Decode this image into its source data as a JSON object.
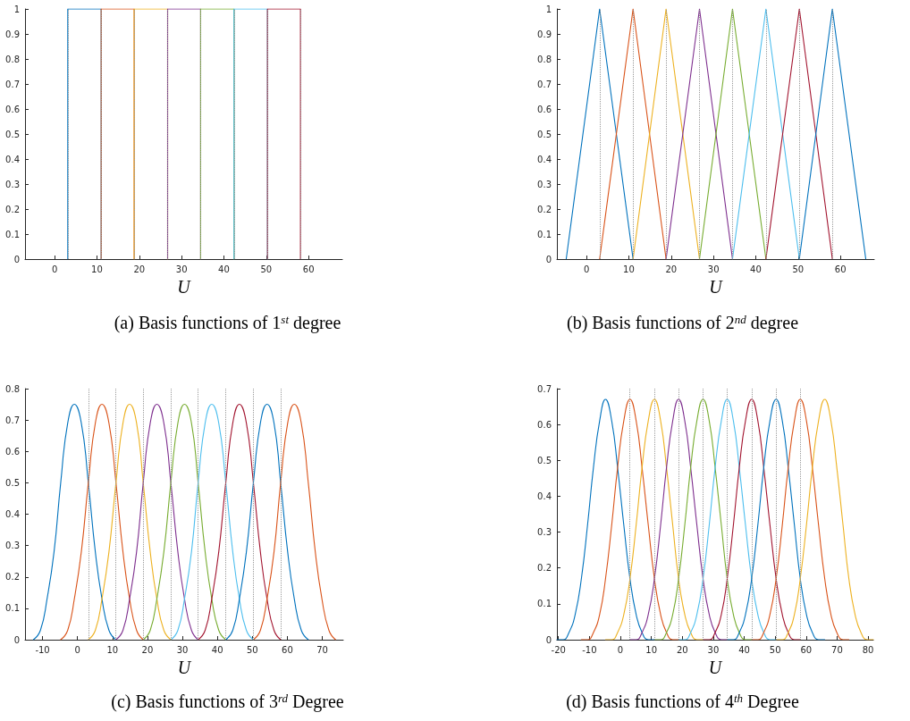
{
  "chart_data": [
    {
      "type": "step",
      "title": "(a) Basis functions of 1$^{st}$ degree",
      "xlabel": "U",
      "marker": "none",
      "xlim": [
        -7,
        68
      ],
      "xticks": [
        0,
        10,
        20,
        30,
        40,
        50,
        60
      ],
      "ylim": [
        0,
        1
      ],
      "yticks": [
        0,
        0.1,
        0.2,
        0.3,
        0.4,
        0.5,
        0.6,
        0.7,
        0.8,
        0.9,
        1
      ],
      "ref_lines": [
        {
          "axis": "x",
          "value": 3.1,
          "color": "#999999",
          "line_style": "dotted"
        },
        {
          "axis": "x",
          "value": 11.0,
          "color": "#999999",
          "line_style": "dotted"
        },
        {
          "axis": "x",
          "value": 18.8,
          "color": "#999999",
          "line_style": "dotted"
        },
        {
          "axis": "x",
          "value": 26.7,
          "color": "#999999",
          "line_style": "dotted"
        },
        {
          "axis": "x",
          "value": 34.5,
          "color": "#999999",
          "line_style": "dotted"
        },
        {
          "axis": "x",
          "value": 42.4,
          "color": "#999999",
          "line_style": "dotted"
        },
        {
          "axis": "x",
          "value": 50.3,
          "color": "#999999",
          "line_style": "dotted"
        },
        {
          "axis": "x",
          "value": 58.1,
          "color": "#999999",
          "line_style": "dotted"
        }
      ],
      "series": [
        {
          "color": "#0072bd",
          "x": [
            3.1,
            3.1,
            11.0
          ],
          "values": [
            0,
            1,
            0
          ]
        },
        {
          "color": "#d95319",
          "x": [
            11.0,
            11.0,
            18.8
          ],
          "values": [
            0,
            1,
            0
          ]
        },
        {
          "color": "#edb120",
          "x": [
            18.8,
            18.8,
            26.7
          ],
          "values": [
            0,
            1,
            0
          ]
        },
        {
          "color": "#7e2f8e",
          "x": [
            26.7,
            26.7,
            34.5
          ],
          "values": [
            0,
            1,
            0
          ]
        },
        {
          "color": "#77ac30",
          "x": [
            34.5,
            34.5,
            42.4
          ],
          "values": [
            0,
            1,
            0
          ]
        },
        {
          "color": "#4dbeee",
          "x": [
            42.4,
            42.4,
            50.3
          ],
          "values": [
            0,
            1,
            0
          ]
        },
        {
          "color": "#a2142f",
          "x": [
            50.3,
            50.3,
            58.1
          ],
          "values": [
            0,
            1,
            0
          ]
        }
      ]
    },
    {
      "type": "line",
      "title": "(b) Basis functions of 2$^{nd}$ degree",
      "xlabel": "U",
      "marker": "none",
      "xlim": [
        -7,
        68
      ],
      "xticks": [
        0,
        10,
        20,
        30,
        40,
        50,
        60
      ],
      "ylim": [
        0,
        1
      ],
      "yticks": [
        0,
        0.1,
        0.2,
        0.3,
        0.4,
        0.5,
        0.6,
        0.7,
        0.8,
        0.9,
        1
      ],
      "ref_lines": [
        {
          "axis": "x",
          "value": 3.1,
          "color": "#999999",
          "line_style": "dotted"
        },
        {
          "axis": "x",
          "value": 11.0,
          "color": "#999999",
          "line_style": "dotted"
        },
        {
          "axis": "x",
          "value": 18.8,
          "color": "#999999",
          "line_style": "dotted"
        },
        {
          "axis": "x",
          "value": 26.7,
          "color": "#999999",
          "line_style": "dotted"
        },
        {
          "axis": "x",
          "value": 34.5,
          "color": "#999999",
          "line_style": "dotted"
        },
        {
          "axis": "x",
          "value": 42.4,
          "color": "#999999",
          "line_style": "dotted"
        },
        {
          "axis": "x",
          "value": 50.3,
          "color": "#999999",
          "line_style": "dotted"
        },
        {
          "axis": "x",
          "value": 58.1,
          "color": "#999999",
          "line_style": "dotted"
        }
      ],
      "series": [
        {
          "color": "#0072bd",
          "x": [
            -4.8,
            3.1,
            11.0
          ],
          "values": [
            0,
            1,
            0
          ]
        },
        {
          "color": "#d95319",
          "x": [
            3.1,
            11.0,
            18.8
          ],
          "values": [
            0,
            1,
            0
          ]
        },
        {
          "color": "#edb120",
          "x": [
            11.0,
            18.8,
            26.7
          ],
          "values": [
            0,
            1,
            0
          ]
        },
        {
          "color": "#7e2f8e",
          "x": [
            18.8,
            26.7,
            34.5
          ],
          "values": [
            0,
            1,
            0
          ]
        },
        {
          "color": "#77ac30",
          "x": [
            26.7,
            34.5,
            42.4
          ],
          "values": [
            0,
            1,
            0
          ]
        },
        {
          "color": "#4dbeee",
          "x": [
            34.5,
            42.4,
            50.3
          ],
          "values": [
            0,
            1,
            0
          ]
        },
        {
          "color": "#a2142f",
          "x": [
            42.4,
            50.3,
            58.1
          ],
          "values": [
            0,
            1,
            0
          ]
        },
        {
          "color": "#0072bd",
          "x": [
            50.3,
            58.1,
            66.0
          ],
          "values": [
            0,
            1,
            0
          ]
        }
      ]
    },
    {
      "type": "line",
      "title": "(c) Basis functions of 3$^{rd}$ Degree",
      "xlabel": "U",
      "marker": "none",
      "xlim": [
        -15,
        76
      ],
      "xticks": [
        -10,
        0,
        10,
        20,
        30,
        40,
        50,
        60,
        70
      ],
      "ylim": [
        0,
        0.8
      ],
      "yticks": [
        0,
        0.1,
        0.2,
        0.3,
        0.4,
        0.5,
        0.6,
        0.7,
        0.8
      ],
      "x": [
        -12.6,
        -10.6,
        -8.7,
        -6.7,
        -4.8,
        -2.8,
        -0.9,
        1.1,
        3.1,
        5.1,
        7.0,
        9.0,
        11.0,
        13.0,
        14.9,
        16.9,
        18.8,
        20.8,
        22.7,
        24.7,
        26.7,
        28.7,
        30.6,
        32.6,
        34.5,
        36.5,
        38.4,
        40.4,
        42.4,
        44.4,
        46.3,
        48.3,
        50.3,
        52.3,
        54.2,
        56.2,
        58.1,
        60.1,
        62.0,
        64.0,
        66.0,
        68.0,
        69.9,
        71.9,
        73.8
      ],
      "ref_lines": [
        {
          "axis": "x",
          "value": 3.1,
          "color": "#999999",
          "line_style": "dotted"
        },
        {
          "axis": "x",
          "value": 11.0,
          "color": "#999999",
          "line_style": "dotted"
        },
        {
          "axis": "x",
          "value": 18.8,
          "color": "#999999",
          "line_style": "dotted"
        },
        {
          "axis": "x",
          "value": 26.7,
          "color": "#999999",
          "line_style": "dotted"
        },
        {
          "axis": "x",
          "value": 34.5,
          "color": "#999999",
          "line_style": "dotted"
        },
        {
          "axis": "x",
          "value": 42.4,
          "color": "#999999",
          "line_style": "dotted"
        },
        {
          "axis": "x",
          "value": 50.3,
          "color": "#999999",
          "line_style": "dotted"
        },
        {
          "axis": "x",
          "value": 58.1,
          "color": "#999999",
          "line_style": "dotted"
        }
      ],
      "series": [
        {
          "color": "#0072bd",
          "values": [
            0,
            0.03,
            0.13,
            0.28,
            0.5,
            0.69,
            0.75,
            0.69,
            0.5,
            0.28,
            0.13,
            0.03,
            0,
            null,
            null,
            null,
            null,
            null,
            null,
            null,
            null,
            null,
            null,
            null,
            null,
            null,
            null,
            null,
            null,
            null,
            null,
            null,
            null,
            null,
            null,
            null,
            null,
            null,
            null,
            null,
            null,
            null,
            null,
            null,
            null
          ]
        },
        {
          "color": "#d95319",
          "values": [
            null,
            null,
            null,
            null,
            0,
            0.03,
            0.13,
            0.28,
            0.5,
            0.69,
            0.75,
            0.69,
            0.5,
            0.28,
            0.13,
            0.03,
            0,
            null,
            null,
            null,
            null,
            null,
            null,
            null,
            null,
            null,
            null,
            null,
            null,
            null,
            null,
            null,
            null,
            null,
            null,
            null,
            null,
            null,
            null,
            null,
            null,
            null,
            null,
            null,
            null
          ]
        },
        {
          "color": "#edb120",
          "values": [
            null,
            null,
            null,
            null,
            null,
            null,
            null,
            null,
            0,
            0.03,
            0.13,
            0.28,
            0.5,
            0.69,
            0.75,
            0.69,
            0.5,
            0.28,
            0.13,
            0.03,
            0,
            null,
            null,
            null,
            null,
            null,
            null,
            null,
            null,
            null,
            null,
            null,
            null,
            null,
            null,
            null,
            null,
            null,
            null,
            null,
            null,
            null,
            null,
            null,
            null
          ]
        },
        {
          "color": "#7e2f8e",
          "values": [
            null,
            null,
            null,
            null,
            null,
            null,
            null,
            null,
            null,
            null,
            null,
            null,
            0,
            0.03,
            0.13,
            0.28,
            0.5,
            0.69,
            0.75,
            0.69,
            0.5,
            0.28,
            0.13,
            0.03,
            0,
            null,
            null,
            null,
            null,
            null,
            null,
            null,
            null,
            null,
            null,
            null,
            null,
            null,
            null,
            null,
            null,
            null,
            null,
            null,
            null
          ]
        },
        {
          "color": "#77ac30",
          "values": [
            null,
            null,
            null,
            null,
            null,
            null,
            null,
            null,
            null,
            null,
            null,
            null,
            null,
            null,
            null,
            null,
            0,
            0.03,
            0.13,
            0.28,
            0.5,
            0.69,
            0.75,
            0.69,
            0.5,
            0.28,
            0.13,
            0.03,
            0,
            null,
            null,
            null,
            null,
            null,
            null,
            null,
            null,
            null,
            null,
            null,
            null,
            null,
            null,
            null,
            null
          ]
        },
        {
          "color": "#4dbeee",
          "values": [
            null,
            null,
            null,
            null,
            null,
            null,
            null,
            null,
            null,
            null,
            null,
            null,
            null,
            null,
            null,
            null,
            null,
            null,
            null,
            null,
            0,
            0.03,
            0.13,
            0.28,
            0.5,
            0.69,
            0.75,
            0.69,
            0.5,
            0.28,
            0.13,
            0.03,
            0,
            null,
            null,
            null,
            null,
            null,
            null,
            null,
            null,
            null,
            null,
            null,
            null
          ]
        },
        {
          "color": "#a2142f",
          "values": [
            null,
            null,
            null,
            null,
            null,
            null,
            null,
            null,
            null,
            null,
            null,
            null,
            null,
            null,
            null,
            null,
            null,
            null,
            null,
            null,
            null,
            null,
            null,
            null,
            0,
            0.03,
            0.13,
            0.28,
            0.5,
            0.69,
            0.75,
            0.69,
            0.5,
            0.28,
            0.13,
            0.03,
            0,
            null,
            null,
            null,
            null,
            null,
            null,
            null,
            null
          ]
        },
        {
          "color": "#0072bd",
          "values": [
            null,
            null,
            null,
            null,
            null,
            null,
            null,
            null,
            null,
            null,
            null,
            null,
            null,
            null,
            null,
            null,
            null,
            null,
            null,
            null,
            null,
            null,
            null,
            null,
            null,
            null,
            null,
            null,
            0,
            0.03,
            0.13,
            0.28,
            0.5,
            0.69,
            0.75,
            0.69,
            0.5,
            0.28,
            0.13,
            0.03,
            0,
            null,
            null,
            null,
            null
          ]
        },
        {
          "color": "#d95319",
          "values": [
            null,
            null,
            null,
            null,
            null,
            null,
            null,
            null,
            null,
            null,
            null,
            null,
            null,
            null,
            null,
            null,
            null,
            null,
            null,
            null,
            null,
            null,
            null,
            null,
            null,
            null,
            null,
            null,
            null,
            null,
            null,
            null,
            0,
            0.03,
            0.13,
            0.28,
            0.5,
            0.69,
            0.75,
            0.69,
            0.5,
            0.28,
            0.13,
            0.03,
            0
          ]
        }
      ]
    },
    {
      "type": "line",
      "title": "(d) Basis functions of 4$^{th}$ Degree",
      "xlabel": "U",
      "marker": "none",
      "xlim": [
        -20.5,
        81.7
      ],
      "xticks": [
        -20,
        -10,
        0,
        10,
        20,
        30,
        40,
        50,
        60,
        70,
        80
      ],
      "ylim": [
        0,
        0.7
      ],
      "yticks": [
        0,
        0.1,
        0.2,
        0.3,
        0.4,
        0.5,
        0.6,
        0.7
      ],
      "x": [
        -20.5,
        -18.5,
        -16.6,
        -14.6,
        -12.6,
        -10.6,
        -8.7,
        -6.7,
        -4.8,
        -2.8,
        -0.9,
        1.1,
        3.1,
        5.1,
        7.0,
        9.0,
        11.0,
        13.0,
        14.9,
        16.9,
        18.8,
        20.8,
        22.7,
        24.7,
        26.7,
        28.7,
        30.6,
        32.6,
        34.5,
        36.5,
        38.4,
        40.4,
        42.4,
        44.4,
        46.3,
        48.3,
        50.3,
        52.3,
        54.2,
        56.2,
        58.1,
        60.1,
        62.0,
        64.0,
        66.0,
        68.0,
        69.9,
        71.9,
        73.8,
        75.8,
        77.7,
        79.7,
        81.7
      ],
      "ref_lines": [
        {
          "axis": "x",
          "value": 3.1,
          "color": "#999999",
          "line_style": "dotted"
        },
        {
          "axis": "x",
          "value": 11.0,
          "color": "#999999",
          "line_style": "dotted"
        },
        {
          "axis": "x",
          "value": 18.8,
          "color": "#999999",
          "line_style": "dotted"
        },
        {
          "axis": "x",
          "value": 26.7,
          "color": "#999999",
          "line_style": "dotted"
        },
        {
          "axis": "x",
          "value": 34.5,
          "color": "#999999",
          "line_style": "dotted"
        },
        {
          "axis": "x",
          "value": 42.4,
          "color": "#999999",
          "line_style": "dotted"
        },
        {
          "axis": "x",
          "value": 50.3,
          "color": "#999999",
          "line_style": "dotted"
        },
        {
          "axis": "x",
          "value": 58.1,
          "color": "#999999",
          "line_style": "dotted"
        }
      ],
      "series": [
        {
          "color": "#0072bd",
          "values": [
            0,
            0,
            0.02,
            0.07,
            0.17,
            0.32,
            0.48,
            0.61,
            0.67,
            0.61,
            0.48,
            0.32,
            0.17,
            0.07,
            0.02,
            0,
            0,
            null,
            null,
            null,
            null,
            null,
            null,
            null,
            null,
            null,
            null,
            null,
            null,
            null,
            null,
            null,
            null,
            null,
            null,
            null,
            null,
            null,
            null,
            null,
            null,
            null,
            null,
            null,
            null,
            null,
            null,
            null,
            null,
            null,
            null,
            null,
            null
          ]
        },
        {
          "color": "#d95319",
          "values": [
            null,
            null,
            null,
            null,
            0,
            0,
            0.02,
            0.07,
            0.17,
            0.32,
            0.48,
            0.61,
            0.67,
            0.61,
            0.48,
            0.32,
            0.17,
            0.07,
            0.02,
            0,
            0,
            null,
            null,
            null,
            null,
            null,
            null,
            null,
            null,
            null,
            null,
            null,
            null,
            null,
            null,
            null,
            null,
            null,
            null,
            null,
            null,
            null,
            null,
            null,
            null,
            null,
            null,
            null,
            null,
            null,
            null,
            null,
            null
          ]
        },
        {
          "color": "#edb120",
          "values": [
            null,
            null,
            null,
            null,
            null,
            null,
            null,
            null,
            0,
            0,
            0.02,
            0.07,
            0.17,
            0.32,
            0.48,
            0.61,
            0.67,
            0.61,
            0.48,
            0.32,
            0.17,
            0.07,
            0.02,
            0,
            0,
            null,
            null,
            null,
            null,
            null,
            null,
            null,
            null,
            null,
            null,
            null,
            null,
            null,
            null,
            null,
            null,
            null,
            null,
            null,
            null,
            null,
            null,
            null,
            null,
            null,
            null,
            null,
            null
          ]
        },
        {
          "color": "#7e2f8e",
          "values": [
            null,
            null,
            null,
            null,
            null,
            null,
            null,
            null,
            null,
            null,
            null,
            null,
            0,
            0,
            0.02,
            0.07,
            0.17,
            0.32,
            0.48,
            0.61,
            0.67,
            0.61,
            0.48,
            0.32,
            0.17,
            0.07,
            0.02,
            0,
            0,
            null,
            null,
            null,
            null,
            null,
            null,
            null,
            null,
            null,
            null,
            null,
            null,
            null,
            null,
            null,
            null,
            null,
            null,
            null,
            null,
            null,
            null,
            null,
            null
          ]
        },
        {
          "color": "#77ac30",
          "values": [
            null,
            null,
            null,
            null,
            null,
            null,
            null,
            null,
            null,
            null,
            null,
            null,
            null,
            null,
            null,
            null,
            0,
            0,
            0.02,
            0.07,
            0.17,
            0.32,
            0.48,
            0.61,
            0.67,
            0.61,
            0.48,
            0.32,
            0.17,
            0.07,
            0.02,
            0,
            0,
            null,
            null,
            null,
            null,
            null,
            null,
            null,
            null,
            null,
            null,
            null,
            null,
            null,
            null,
            null,
            null,
            null,
            null,
            null,
            null
          ]
        },
        {
          "color": "#4dbeee",
          "values": [
            null,
            null,
            null,
            null,
            null,
            null,
            null,
            null,
            null,
            null,
            null,
            null,
            null,
            null,
            null,
            null,
            null,
            null,
            null,
            null,
            0,
            0,
            0.02,
            0.07,
            0.17,
            0.32,
            0.48,
            0.61,
            0.67,
            0.61,
            0.48,
            0.32,
            0.17,
            0.07,
            0.02,
            0,
            0,
            null,
            null,
            null,
            null,
            null,
            null,
            null,
            null,
            null,
            null,
            null,
            null,
            null,
            null,
            null,
            null
          ]
        },
        {
          "color": "#a2142f",
          "values": [
            null,
            null,
            null,
            null,
            null,
            null,
            null,
            null,
            null,
            null,
            null,
            null,
            null,
            null,
            null,
            null,
            null,
            null,
            null,
            null,
            null,
            null,
            null,
            null,
            0,
            0,
            0.02,
            0.07,
            0.17,
            0.32,
            0.48,
            0.61,
            0.67,
            0.61,
            0.48,
            0.32,
            0.17,
            0.07,
            0.02,
            0,
            0,
            null,
            null,
            null,
            null,
            null,
            null,
            null,
            null,
            null,
            null,
            null,
            null
          ]
        },
        {
          "color": "#0072bd",
          "values": [
            null,
            null,
            null,
            null,
            null,
            null,
            null,
            null,
            null,
            null,
            null,
            null,
            null,
            null,
            null,
            null,
            null,
            null,
            null,
            null,
            null,
            null,
            null,
            null,
            null,
            null,
            null,
            null,
            0,
            0,
            0.02,
            0.07,
            0.17,
            0.32,
            0.48,
            0.61,
            0.67,
            0.61,
            0.48,
            0.32,
            0.17,
            0.07,
            0.02,
            0,
            0,
            null,
            null,
            null,
            null,
            null,
            null,
            null,
            null
          ]
        },
        {
          "color": "#d95319",
          "values": [
            null,
            null,
            null,
            null,
            null,
            null,
            null,
            null,
            null,
            null,
            null,
            null,
            null,
            null,
            null,
            null,
            null,
            null,
            null,
            null,
            null,
            null,
            null,
            null,
            null,
            null,
            null,
            null,
            null,
            null,
            null,
            null,
            0,
            0,
            0.02,
            0.07,
            0.17,
            0.32,
            0.48,
            0.61,
            0.67,
            0.61,
            0.48,
            0.32,
            0.17,
            0.07,
            0.02,
            0,
            0,
            null,
            null,
            null,
            null
          ]
        },
        {
          "color": "#edb120",
          "values": [
            null,
            null,
            null,
            null,
            null,
            null,
            null,
            null,
            null,
            null,
            null,
            null,
            null,
            null,
            null,
            null,
            null,
            null,
            null,
            null,
            null,
            null,
            null,
            null,
            null,
            null,
            null,
            null,
            null,
            null,
            null,
            null,
            null,
            null,
            null,
            null,
            0,
            0,
            0.02,
            0.07,
            0.17,
            0.32,
            0.48,
            0.61,
            0.67,
            0.61,
            0.48,
            0.32,
            0.17,
            0.07,
            0.02,
            0,
            0
          ]
        }
      ]
    }
  ]
}
